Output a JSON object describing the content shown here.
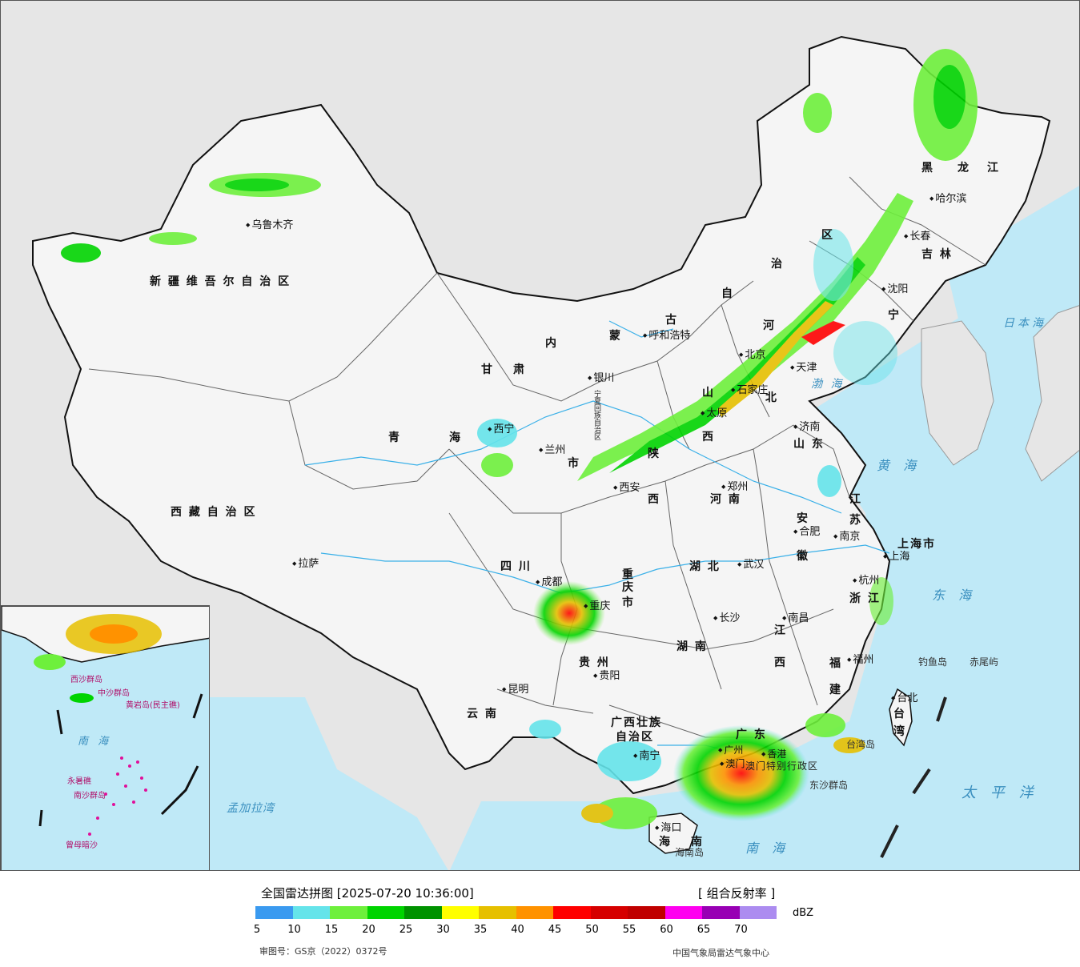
{
  "map": {
    "provinces": [
      {
        "key": "xinjiang",
        "label": "新 疆 维 吾 尔 自 治 区"
      },
      {
        "key": "xizang",
        "label": "西 藏 自 治 区"
      },
      {
        "key": "qinghai_q",
        "label": "青"
      },
      {
        "key": "qinghai_h",
        "label": "海"
      },
      {
        "key": "gansu_g",
        "label": "甘"
      },
      {
        "key": "gansu_s",
        "label": "肃"
      },
      {
        "key": "neimenggu_n",
        "label": "内"
      },
      {
        "key": "neimenggu_m",
        "label": "蒙"
      },
      {
        "key": "neimenggu_g",
        "label": "古"
      },
      {
        "key": "neimenggu_z",
        "label": "自"
      },
      {
        "key": "neimenggu_zhi",
        "label": "治"
      },
      {
        "key": "neimenggu_q",
        "label": "区"
      },
      {
        "key": "heilongjiang_h",
        "label": "黑"
      },
      {
        "key": "heilongjiang_l",
        "label": "龙"
      },
      {
        "key": "heilongjiang_j",
        "label": "江"
      },
      {
        "key": "jilin",
        "label": "吉 林"
      },
      {
        "key": "liaoning",
        "label": "宁"
      },
      {
        "key": "hebei_he",
        "label": "河"
      },
      {
        "key": "hebei_bei",
        "label": "北"
      },
      {
        "key": "shanxi_s",
        "label": "山"
      },
      {
        "key": "shanxi_x",
        "label": "西"
      },
      {
        "key": "shaanxi_s",
        "label": "陕"
      },
      {
        "key": "shaanxi_x",
        "label": "西"
      },
      {
        "key": "ningxia",
        "label": "宁夏回族自治区"
      },
      {
        "key": "shandong",
        "label": "山 东"
      },
      {
        "key": "henan",
        "label": "河 南"
      },
      {
        "key": "jiangsu_j",
        "label": "江"
      },
      {
        "key": "jiangsu_s",
        "label": "苏"
      },
      {
        "key": "anhui_a",
        "label": "安"
      },
      {
        "key": "anhui_h",
        "label": "徽"
      },
      {
        "key": "shanghai",
        "label": "上海市"
      },
      {
        "key": "hubei",
        "label": "湖 北"
      },
      {
        "key": "sichuan",
        "label": "四 川"
      },
      {
        "key": "chongqing_c",
        "label": "重"
      },
      {
        "key": "chongqing_q",
        "label": "庆"
      },
      {
        "key": "chongqing_s",
        "label": "市"
      },
      {
        "key": "zhejiang",
        "label": "浙 江"
      },
      {
        "key": "hunan",
        "label": "湖 南"
      },
      {
        "key": "jiangxi_j",
        "label": "江"
      },
      {
        "key": "jiangxi_x",
        "label": "西"
      },
      {
        "key": "fujian_f",
        "label": "福"
      },
      {
        "key": "fujian_j",
        "label": "建"
      },
      {
        "key": "guizhou",
        "label": "贵 州"
      },
      {
        "key": "yunnan",
        "label": "云 南"
      },
      {
        "key": "guangxi_1",
        "label": "广西壮族"
      },
      {
        "key": "guangxi_2",
        "label": "自治区"
      },
      {
        "key": "guangdong",
        "label": "广 东"
      },
      {
        "key": "hainan_h",
        "label": "海"
      },
      {
        "key": "hainan_n",
        "label": "南"
      },
      {
        "key": "taiwan_t",
        "label": "台"
      },
      {
        "key": "taiwan_w",
        "label": "湾"
      },
      {
        "key": "hk_macao",
        "label": "澳门特别行政区"
      },
      {
        "key": "gansu_shi",
        "label": "市"
      }
    ],
    "cities": [
      {
        "key": "wulumuqi",
        "label": "乌鲁木齐"
      },
      {
        "key": "lasa",
        "label": "拉萨"
      },
      {
        "key": "xining",
        "label": "西宁"
      },
      {
        "key": "lanzhou",
        "label": "兰州"
      },
      {
        "key": "yinchuan",
        "label": "银川"
      },
      {
        "key": "huhehaote",
        "label": "呼和浩特"
      },
      {
        "key": "haerbin",
        "label": "哈尔滨"
      },
      {
        "key": "changchun",
        "label": "长春"
      },
      {
        "key": "shenyang",
        "label": "沈阳"
      },
      {
        "key": "beijing",
        "label": "北京"
      },
      {
        "key": "tianjin",
        "label": "天津"
      },
      {
        "key": "shijiazhuang",
        "label": "石家庄"
      },
      {
        "key": "taiyuan",
        "label": "太原"
      },
      {
        "key": "jinan",
        "label": "济南"
      },
      {
        "key": "xian",
        "label": "西安"
      },
      {
        "key": "zhengzhou",
        "label": "郑州"
      },
      {
        "key": "hefei",
        "label": "合肥"
      },
      {
        "key": "nanjing",
        "label": "南京"
      },
      {
        "key": "shanghai_c",
        "label": "上海"
      },
      {
        "key": "hangzhou",
        "label": "杭州"
      },
      {
        "key": "wuhan",
        "label": "武汉"
      },
      {
        "key": "chengdu",
        "label": "成都"
      },
      {
        "key": "chongqing_city",
        "label": "重庆"
      },
      {
        "key": "changsha",
        "label": "长沙"
      },
      {
        "key": "nanchang",
        "label": "南昌"
      },
      {
        "key": "fuzhou",
        "label": "福州"
      },
      {
        "key": "guiyang",
        "label": "贵阳"
      },
      {
        "key": "kunming",
        "label": "昆明"
      },
      {
        "key": "nanning",
        "label": "南宁"
      },
      {
        "key": "guangzhou",
        "label": "广州"
      },
      {
        "key": "xianggang",
        "label": "香港"
      },
      {
        "key": "aomen",
        "label": "澳门"
      },
      {
        "key": "haikou",
        "label": "海口"
      },
      {
        "key": "taibei",
        "label": "台北"
      },
      {
        "key": "haerbin_label",
        "label": ""
      }
    ],
    "seas": [
      {
        "key": "japan",
        "label": "日本海"
      },
      {
        "key": "bohai",
        "label": "渤 海"
      },
      {
        "key": "yellow",
        "label": "黄 海"
      },
      {
        "key": "east",
        "label": "东 海"
      },
      {
        "key": "pacific",
        "label": "太 平 洋"
      },
      {
        "key": "south",
        "label": "南 海"
      },
      {
        "key": "bengal",
        "label": "孟加拉湾"
      }
    ],
    "islands": [
      {
        "key": "diaoyu",
        "label": "钓鱼岛"
      },
      {
        "key": "chiwei",
        "label": "赤尾屿"
      },
      {
        "key": "taiwan_island",
        "label": "台湾岛"
      },
      {
        "key": "hainan_island",
        "label": "海南岛"
      },
      {
        "key": "dongsha",
        "label": "东沙群岛"
      }
    ],
    "inset": {
      "south_sea": "南 海",
      "xisha": "西沙群岛",
      "zhongsha": "中沙群岛",
      "huangyan": "黄岩岛(民主礁)",
      "nansha": "南沙群岛",
      "yongshu": "永暑礁",
      "zengmu": "曾母暗沙"
    }
  },
  "legend": {
    "title": "全国雷达拼图 [2025-07-20 10:36:00]",
    "product": "[ 组合反射率 ]",
    "unit": "dBZ",
    "colors": [
      "#3a9af0",
      "#65e4ea",
      "#6ef03c",
      "#00d400",
      "#009200",
      "#ffff00",
      "#e6c000",
      "#ff9200",
      "#ff0000",
      "#d60000",
      "#c00000",
      "#ff00f0",
      "#9800b4",
      "#ac8cf0"
    ],
    "ticks": [
      "5",
      "10",
      "15",
      "20",
      "25",
      "30",
      "35",
      "40",
      "45",
      "50",
      "55",
      "60",
      "65",
      "70"
    ],
    "approval": "审图号：GS京（2022）0372号",
    "source": "中国气象局雷达气象中心"
  }
}
